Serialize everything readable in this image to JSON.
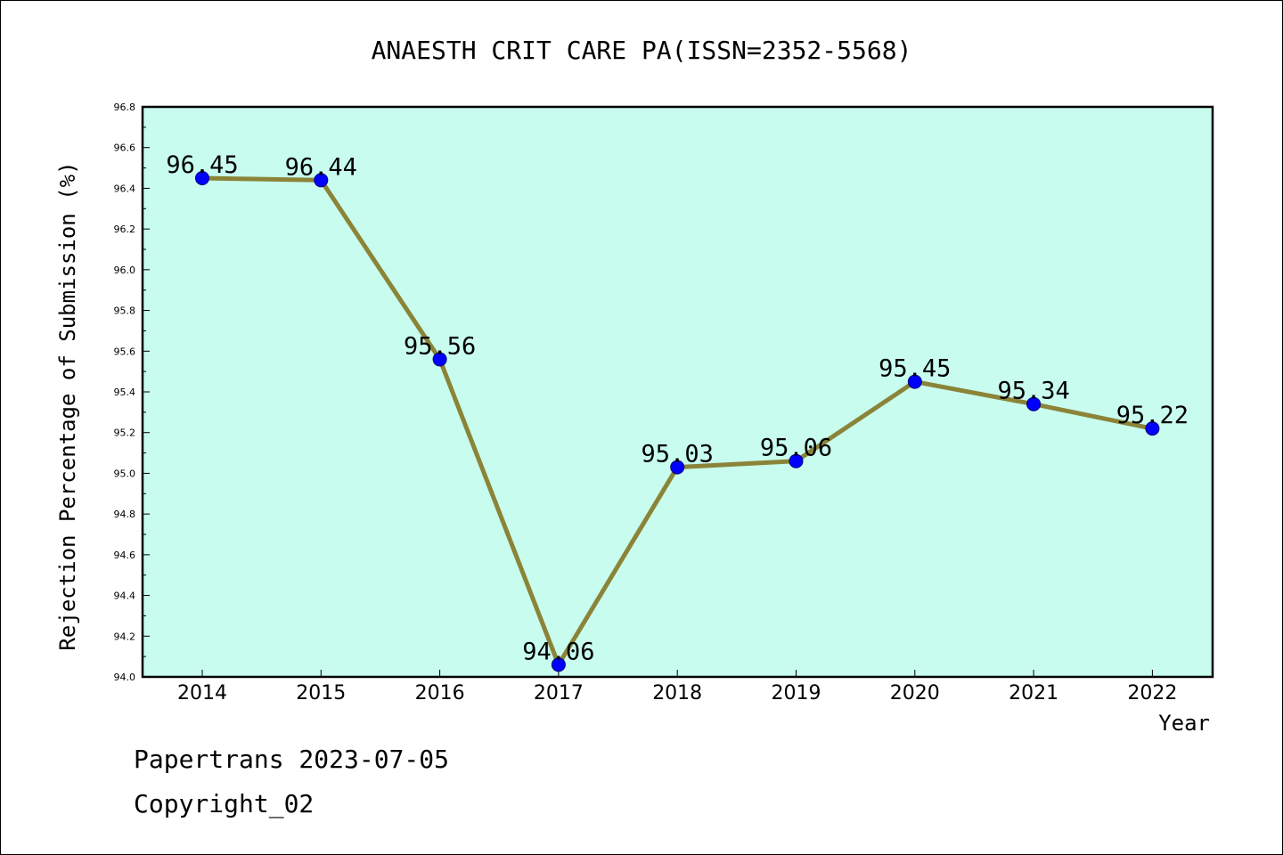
{
  "chart_data": {
    "type": "line",
    "title": "ANAESTH CRIT CARE PA(ISSN=2352-5568)",
    "xlabel": "Year",
    "ylabel": "Rejection Percentage of Submission (%)",
    "categories": [
      "2014",
      "2015",
      "2016",
      "2017",
      "2018",
      "2019",
      "2020",
      "2021",
      "2022"
    ],
    "series": [
      {
        "values": [
          96.45,
          96.44,
          95.56,
          94.06,
          95.03,
          95.06,
          95.45,
          95.34,
          95.22
        ],
        "data_labels": [
          "96.45",
          "96.44",
          "95.56",
          "94.06",
          "95.03",
          "95.06",
          "95.45",
          "95.34",
          "95.22"
        ]
      }
    ],
    "ylim": [
      94.0,
      96.8
    ],
    "yticks": [
      "94.0",
      "94.2",
      "94.4",
      "94.6",
      "94.8",
      "95.0",
      "95.2",
      "95.4",
      "95.6",
      "95.8",
      "96.0",
      "96.2",
      "96.4",
      "96.6",
      "96.8"
    ],
    "grid": false,
    "legend": "none",
    "colors": {
      "plot_background": "#c8fcee",
      "line": "#8b8438",
      "marker": "#0000ff"
    }
  },
  "footer": {
    "line1": "Papertrans 2023-07-05",
    "line2": "Copyright_02"
  }
}
